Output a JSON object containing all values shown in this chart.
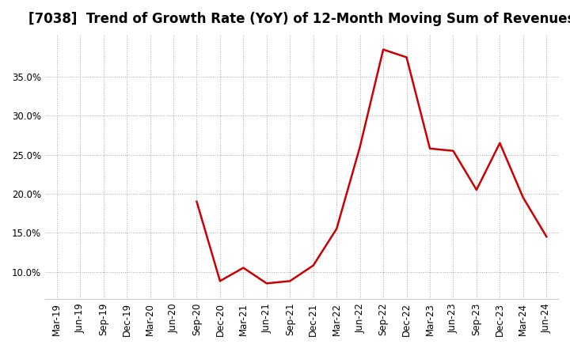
{
  "title": "[7038]  Trend of Growth Rate (YoY) of 12-Month Moving Sum of Revenues",
  "line_color": "#cc0000",
  "background_color": "#ffffff",
  "grid_color": "#aaaaaa",
  "x_labels": [
    "Mar-19",
    "Jun-19",
    "Sep-19",
    "Dec-19",
    "Mar-20",
    "Jun-20",
    "Sep-20",
    "Dec-20",
    "Mar-21",
    "Jun-21",
    "Sep-21",
    "Dec-21",
    "Mar-22",
    "Jun-22",
    "Sep-22",
    "Dec-22",
    "Mar-23",
    "Jun-23",
    "Sep-23",
    "Dec-23",
    "Mar-24",
    "Jun-24"
  ],
  "x_values": [
    0,
    1,
    2,
    3,
    4,
    5,
    6,
    7,
    8,
    9,
    10,
    11,
    12,
    13,
    14,
    15,
    16,
    17,
    18,
    19,
    20,
    21
  ],
  "y_values": [
    null,
    null,
    null,
    null,
    null,
    null,
    0.19,
    0.088,
    0.105,
    0.085,
    0.088,
    0.108,
    0.155,
    0.26,
    0.385,
    0.375,
    0.258,
    0.255,
    0.205,
    0.265,
    0.195,
    0.145
  ],
  "ylim": [
    0.065,
    0.405
  ],
  "yticks": [
    0.1,
    0.15,
    0.2,
    0.25,
    0.3,
    0.35
  ],
  "title_fontsize": 12,
  "tick_fontsize": 8.5
}
